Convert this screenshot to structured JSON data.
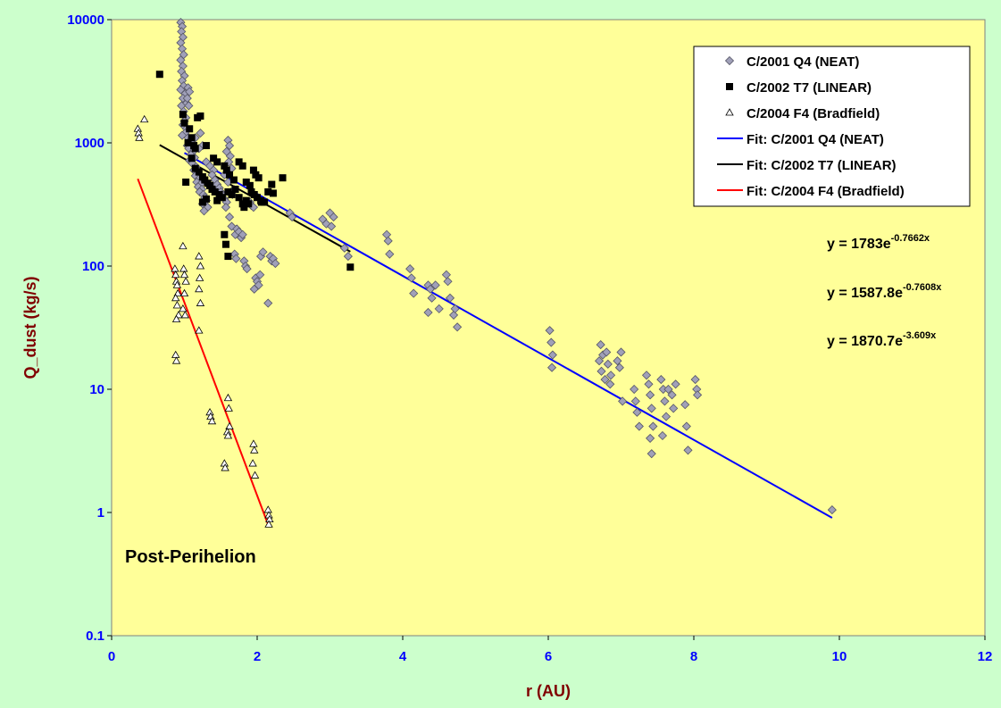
{
  "chart_data": {
    "type": "scatter",
    "xlabel": "r (AU)",
    "ylabel": "Q_dust (kg/s)",
    "xlim": [
      0,
      12
    ],
    "ylim": [
      0.1,
      10000
    ],
    "y_scale": "log",
    "x_ticks": [
      "0",
      "2",
      "4",
      "6",
      "8",
      "10",
      "12"
    ],
    "y_ticks": [
      "0.1",
      "1",
      "10",
      "100",
      "1000",
      "10000"
    ],
    "legend_position": "top-right",
    "annotation": "Post-Perihelion",
    "series": [
      {
        "name": "C/2001 Q4 (NEAT)",
        "marker": "diamond",
        "color": "#a0a0b8",
        "points": [
          [
            0.95,
            9500
          ],
          [
            0.97,
            8800
          ],
          [
            0.96,
            8000
          ],
          [
            0.98,
            7200
          ],
          [
            0.95,
            6500
          ],
          [
            0.97,
            5800
          ],
          [
            0.99,
            5200
          ],
          [
            0.95,
            4700
          ],
          [
            0.98,
            4200
          ],
          [
            0.96,
            3800
          ],
          [
            1.0,
            3500
          ],
          [
            0.97,
            3200
          ],
          [
            0.99,
            2900
          ],
          [
            0.95,
            2700
          ],
          [
            1.01,
            2500
          ],
          [
            0.98,
            2300
          ],
          [
            1.03,
            2100
          ],
          [
            0.96,
            2000
          ],
          [
            1.05,
            2800
          ],
          [
            1.07,
            2600
          ],
          [
            1.04,
            2300
          ],
          [
            1.06,
            2000
          ],
          [
            0.99,
            1800
          ],
          [
            1.02,
            1600
          ],
          [
            1.0,
            1500
          ],
          [
            0.98,
            1400
          ],
          [
            1.03,
            1300
          ],
          [
            1.01,
            1200
          ],
          [
            0.97,
            1150
          ],
          [
            1.05,
            1100
          ],
          [
            1.08,
            1050
          ],
          [
            1.1,
            1000
          ],
          [
            1.04,
            950
          ],
          [
            1.06,
            900
          ],
          [
            1.12,
            850
          ],
          [
            1.09,
            800
          ],
          [
            1.14,
            760
          ],
          [
            1.07,
            720
          ],
          [
            1.11,
            680
          ],
          [
            1.16,
            640
          ],
          [
            1.13,
            600
          ],
          [
            1.18,
            570
          ],
          [
            1.15,
            540
          ],
          [
            1.2,
            510
          ],
          [
            1.17,
            480
          ],
          [
            1.22,
            460
          ],
          [
            1.19,
            440
          ],
          [
            1.24,
            420
          ],
          [
            1.21,
            400
          ],
          [
            1.26,
            380
          ],
          [
            1.28,
            360
          ],
          [
            1.3,
            340
          ],
          [
            1.25,
            320
          ],
          [
            1.32,
            300
          ],
          [
            1.27,
            280
          ],
          [
            1.22,
            1200
          ],
          [
            1.15,
            1100
          ],
          [
            1.25,
            950
          ],
          [
            1.2,
            900
          ],
          [
            1.3,
            700
          ],
          [
            1.35,
            650
          ],
          [
            1.4,
            600
          ],
          [
            1.38,
            550
          ],
          [
            1.42,
            500
          ],
          [
            1.45,
            460
          ],
          [
            1.48,
            430
          ],
          [
            1.5,
            400
          ],
          [
            1.52,
            380
          ],
          [
            1.55,
            350
          ],
          [
            1.58,
            330
          ],
          [
            1.6,
            1050
          ],
          [
            1.62,
            950
          ],
          [
            1.58,
            850
          ],
          [
            1.63,
            780
          ],
          [
            1.61,
            700
          ],
          [
            1.65,
            620
          ],
          [
            1.55,
            550
          ],
          [
            1.6,
            480
          ],
          [
            1.68,
            420
          ],
          [
            1.66,
            380
          ],
          [
            1.57,
            300
          ],
          [
            1.62,
            250
          ],
          [
            1.65,
            210
          ],
          [
            1.7,
            180
          ],
          [
            1.72,
            200
          ],
          [
            1.75,
            190
          ],
          [
            1.78,
            170
          ],
          [
            1.8,
            180
          ],
          [
            1.69,
            125
          ],
          [
            1.71,
            115
          ],
          [
            1.82,
            110
          ],
          [
            1.84,
            100
          ],
          [
            1.86,
            95
          ],
          [
            1.9,
            330
          ],
          [
            1.92,
            310
          ],
          [
            1.95,
            300
          ],
          [
            1.98,
            80
          ],
          [
            2.0,
            75
          ],
          [
            2.02,
            70
          ],
          [
            2.04,
            85
          ],
          [
            1.96,
            65
          ],
          [
            2.05,
            120
          ],
          [
            2.08,
            130
          ],
          [
            2.15,
            50
          ],
          [
            2.18,
            120
          ],
          [
            2.2,
            110
          ],
          [
            2.22,
            115
          ],
          [
            2.25,
            105
          ],
          [
            2.45,
            270
          ],
          [
            2.48,
            250
          ],
          [
            2.9,
            240
          ],
          [
            2.95,
            220
          ],
          [
            3.0,
            270
          ],
          [
            3.05,
            250
          ],
          [
            3.02,
            210
          ],
          [
            3.2,
            140
          ],
          [
            3.25,
            120
          ],
          [
            3.78,
            180
          ],
          [
            3.8,
            160
          ],
          [
            3.82,
            125
          ],
          [
            4.1,
            95
          ],
          [
            4.12,
            80
          ],
          [
            4.15,
            60
          ],
          [
            4.35,
            70
          ],
          [
            4.38,
            65
          ],
          [
            4.4,
            55
          ],
          [
            4.45,
            70
          ],
          [
            4.35,
            42
          ],
          [
            4.5,
            45
          ],
          [
            4.6,
            85
          ],
          [
            4.62,
            75
          ],
          [
            4.65,
            55
          ],
          [
            4.7,
            40
          ],
          [
            4.75,
            32
          ],
          [
            4.72,
            45
          ],
          [
            6.02,
            30
          ],
          [
            6.04,
            24
          ],
          [
            6.06,
            19
          ],
          [
            6.05,
            15
          ],
          [
            6.72,
            23
          ],
          [
            6.75,
            19
          ],
          [
            6.7,
            17
          ],
          [
            6.73,
            14
          ],
          [
            6.78,
            12
          ],
          [
            6.8,
            20
          ],
          [
            6.82,
            16
          ],
          [
            6.86,
            13
          ],
          [
            6.85,
            11
          ],
          [
            6.95,
            17
          ],
          [
            7.0,
            20
          ],
          [
            6.98,
            15
          ],
          [
            7.02,
            8
          ],
          [
            7.18,
            10
          ],
          [
            7.2,
            8
          ],
          [
            7.22,
            6.5
          ],
          [
            7.25,
            5
          ],
          [
            7.35,
            13
          ],
          [
            7.38,
            11
          ],
          [
            7.4,
            9
          ],
          [
            7.42,
            7
          ],
          [
            7.44,
            5
          ],
          [
            7.4,
            4
          ],
          [
            7.42,
            3
          ],
          [
            7.55,
            12
          ],
          [
            7.58,
            10
          ],
          [
            7.6,
            8
          ],
          [
            7.62,
            6
          ],
          [
            7.57,
            4.2
          ],
          [
            7.65,
            10
          ],
          [
            7.7,
            9
          ],
          [
            7.75,
            11
          ],
          [
            7.72,
            7
          ],
          [
            7.88,
            7.5
          ],
          [
            7.9,
            5
          ],
          [
            7.92,
            3.2
          ],
          [
            8.02,
            12
          ],
          [
            8.04,
            10
          ],
          [
            8.05,
            9
          ],
          [
            9.9,
            1.05
          ]
        ]
      },
      {
        "name": "C/2002 T7 (LINEAR)",
        "marker": "square",
        "color": "#000000",
        "points": [
          [
            0.66,
            3600
          ],
          [
            0.98,
            1700
          ],
          [
            1.18,
            1600
          ],
          [
            1.22,
            1650
          ],
          [
            1.0,
            1450
          ],
          [
            1.07,
            1300
          ],
          [
            1.1,
            1100
          ],
          [
            1.05,
            1000
          ],
          [
            1.13,
            950
          ],
          [
            1.15,
            900
          ],
          [
            1.3,
            950
          ],
          [
            1.4,
            750
          ],
          [
            1.45,
            700
          ],
          [
            1.55,
            650
          ],
          [
            1.58,
            600
          ],
          [
            1.62,
            550
          ],
          [
            1.68,
            500
          ],
          [
            1.75,
            700
          ],
          [
            1.8,
            650
          ],
          [
            1.85,
            480
          ],
          [
            1.9,
            450
          ],
          [
            1.95,
            600
          ],
          [
            1.98,
            550
          ],
          [
            2.02,
            520
          ],
          [
            1.1,
            750
          ],
          [
            1.15,
            620
          ],
          [
            1.2,
            580
          ],
          [
            1.25,
            530
          ],
          [
            1.28,
            500
          ],
          [
            1.32,
            470
          ],
          [
            1.35,
            450
          ],
          [
            1.38,
            420
          ],
          [
            1.42,
            400
          ],
          [
            1.48,
            380
          ],
          [
            1.52,
            360
          ],
          [
            1.6,
            400
          ],
          [
            1.65,
            380
          ],
          [
            1.7,
            420
          ],
          [
            1.75,
            360
          ],
          [
            1.8,
            320
          ],
          [
            1.82,
            300
          ],
          [
            1.85,
            340
          ],
          [
            1.88,
            320
          ],
          [
            1.92,
            400
          ],
          [
            1.96,
            380
          ],
          [
            2.0,
            360
          ],
          [
            2.05,
            340
          ],
          [
            2.1,
            330
          ],
          [
            2.15,
            400
          ],
          [
            2.2,
            460
          ],
          [
            2.22,
            390
          ],
          [
            2.35,
            520
          ],
          [
            1.25,
            330
          ],
          [
            1.3,
            350
          ],
          [
            1.02,
            480
          ],
          [
            1.55,
            180
          ],
          [
            1.57,
            150
          ],
          [
            1.6,
            120
          ],
          [
            2.06,
            330
          ],
          [
            3.28,
            98
          ],
          [
            1.45,
            340
          ]
        ]
      },
      {
        "name": "C/2004 F4 (Bradfield)",
        "marker": "triangle",
        "color": "#ffffff",
        "points": [
          [
            0.36,
            1300
          ],
          [
            0.37,
            1200
          ],
          [
            0.38,
            1100
          ],
          [
            0.45,
            1550
          ],
          [
            0.87,
            95
          ],
          [
            0.88,
            85
          ],
          [
            0.89,
            75
          ],
          [
            0.9,
            70
          ],
          [
            0.91,
            60
          ],
          [
            0.88,
            55
          ],
          [
            0.9,
            48
          ],
          [
            0.92,
            40
          ],
          [
            0.89,
            37
          ],
          [
            0.88,
            19
          ],
          [
            0.89,
            17
          ],
          [
            0.98,
            145
          ],
          [
            0.99,
            95
          ],
          [
            1.0,
            85
          ],
          [
            1.02,
            75
          ],
          [
            1.0,
            60
          ],
          [
            0.98,
            45
          ],
          [
            1.01,
            40
          ],
          [
            1.2,
            120
          ],
          [
            1.22,
            100
          ],
          [
            1.21,
            80
          ],
          [
            1.2,
            65
          ],
          [
            1.22,
            50
          ],
          [
            1.2,
            30
          ],
          [
            1.35,
            6.5
          ],
          [
            1.36,
            6
          ],
          [
            1.38,
            5.5
          ],
          [
            1.55,
            2.5
          ],
          [
            1.56,
            2.3
          ],
          [
            1.6,
            8.5
          ],
          [
            1.61,
            7
          ],
          [
            1.62,
            5
          ],
          [
            1.59,
            4.5
          ],
          [
            1.6,
            4.2
          ],
          [
            1.95,
            3.6
          ],
          [
            1.96,
            3.2
          ],
          [
            1.94,
            2.5
          ],
          [
            1.97,
            2
          ],
          [
            2.15,
            1.05
          ],
          [
            2.16,
            0.95
          ],
          [
            2.17,
            0.88
          ],
          [
            2.16,
            0.8
          ]
        ]
      }
    ],
    "fits": [
      {
        "name": "Fit: C/2001 Q4 (NEAT)",
        "color": "#0000ff",
        "a": 1783,
        "b": -0.7662,
        "x_range": [
          1.0,
          9.9
        ],
        "equation": "y = 1783e",
        "exponent": "-0.7662x"
      },
      {
        "name": "Fit: C/2002 T7 (LINEAR)",
        "color": "#000000",
        "a": 1587.8,
        "b": -0.7608,
        "x_range": [
          0.66,
          3.28
        ],
        "equation": "y = 1587.8e",
        "exponent": "-0.7608x"
      },
      {
        "name": "Fit: C/2004 F4 (Bradfield)",
        "color": "#ff0000",
        "a": 1870.7,
        "b": -3.609,
        "x_range": [
          0.36,
          2.15
        ],
        "equation": "y = 1870.7e",
        "exponent": "-3.609x"
      }
    ]
  }
}
